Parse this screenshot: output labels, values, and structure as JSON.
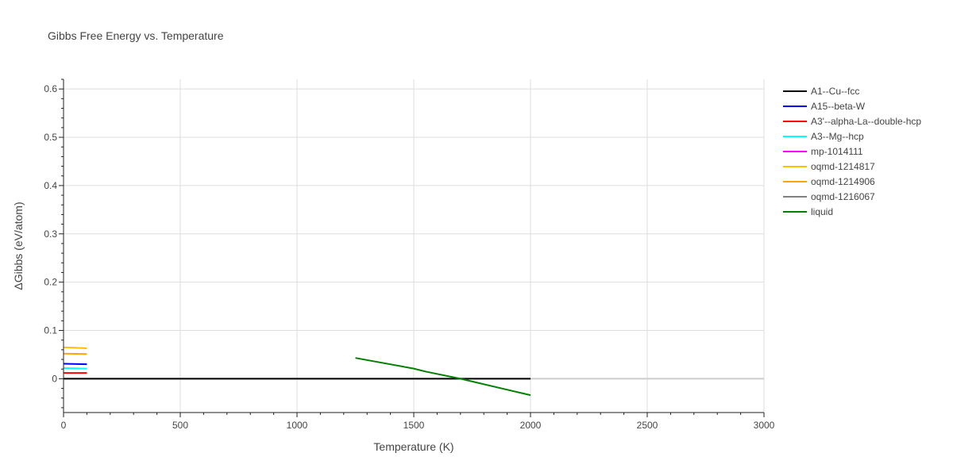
{
  "chart_data": {
    "type": "line",
    "title": "Gibbs Free Energy vs. Temperature",
    "xlabel": "Temperature (K)",
    "ylabel": "ΔGibbs (eV/atom)",
    "xlim": [
      0,
      3000
    ],
    "ylim": [
      -0.07,
      0.62
    ],
    "xticks": [
      0,
      500,
      1000,
      1500,
      2000,
      2500,
      3000
    ],
    "xtick_labels": [
      "0",
      "500",
      "1000",
      "1500",
      "2000",
      "2500",
      "3000"
    ],
    "yticks": [
      0,
      0.1,
      0.2,
      0.3,
      0.4,
      0.5,
      0.6
    ],
    "ytick_labels": [
      "0",
      "0.1",
      "0.2",
      "0.3",
      "0.4",
      "0.5",
      "0.6"
    ],
    "grid": true,
    "legend_position": "right",
    "series": [
      {
        "name": "A1--Cu--fcc",
        "color": "#000000",
        "x": [
          0,
          2000
        ],
        "y": [
          0,
          0
        ]
      },
      {
        "name": "A15--beta-W",
        "color": "#0000ff",
        "x": [
          0,
          100
        ],
        "y": [
          0.031,
          0.03
        ]
      },
      {
        "name": "A3'--alpha-La--double-hcp",
        "color": "#ff0000",
        "x": [
          0,
          100
        ],
        "y": [
          0.012,
          0.012
        ]
      },
      {
        "name": "A3--Mg--hcp",
        "color": "#00ffff",
        "x": [
          0,
          100
        ],
        "y": [
          0.022,
          0.021
        ]
      },
      {
        "name": "mp-1014111",
        "color": "#ff00ff",
        "x": [],
        "y": []
      },
      {
        "name": "oqmd-1214817",
        "color": "#ffc000",
        "x": [
          0,
          100
        ],
        "y": [
          0.065,
          0.063
        ]
      },
      {
        "name": "oqmd-1214906",
        "color": "#ffa500",
        "x": [
          0,
          100
        ],
        "y": [
          0.052,
          0.051
        ]
      },
      {
        "name": "oqmd-1216067",
        "color": "#808080",
        "x": [],
        "y": []
      },
      {
        "name": "liquid",
        "color": "#008000",
        "x": [
          1250,
          1500,
          1550,
          1700,
          2000
        ],
        "y": [
          0.043,
          0.021,
          0.015,
          0.0,
          -0.034
        ]
      }
    ]
  }
}
